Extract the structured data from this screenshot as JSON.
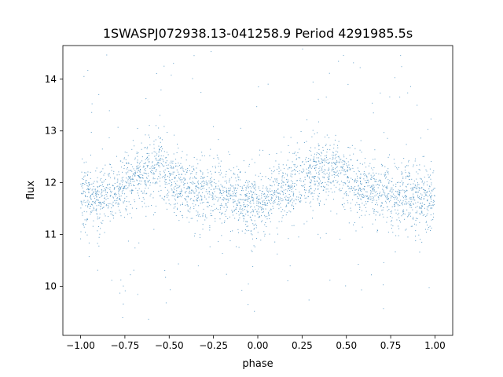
{
  "chart_data": {
    "type": "scatter",
    "title": "1SWASPJ072938.13-041258.9 Period 4291985.5s",
    "xlabel": "phase",
    "ylabel": "flux",
    "xlim": [
      -1.1,
      1.1
    ],
    "ylim": [
      9.05,
      14.65
    ],
    "xticks": [
      -1.0,
      -0.75,
      -0.5,
      -0.25,
      0.0,
      0.25,
      0.5,
      0.75,
      1.0
    ],
    "xtick_labels": [
      "−1.00",
      "−0.75",
      "−0.50",
      "−0.25",
      "0.00",
      "0.25",
      "0.50",
      "0.75",
      "1.00"
    ],
    "yticks": [
      10,
      11,
      12,
      13,
      14
    ],
    "ytick_labels": [
      "10",
      "11",
      "12",
      "13",
      "14"
    ],
    "grid": false,
    "legend": "none",
    "point_color": "#1f77b4",
    "series": [
      {
        "trend": {
          "phase": [
            -1.0,
            -0.9,
            -0.8,
            -0.7,
            -0.6,
            -0.55,
            -0.5,
            -0.45,
            -0.4,
            -0.3,
            -0.2,
            -0.1,
            0.0,
            0.1,
            0.2,
            0.3,
            0.4,
            0.45,
            0.5,
            0.55,
            0.6,
            0.7,
            0.8,
            0.9,
            1.0
          ],
          "flux": [
            11.75,
            11.65,
            11.85,
            12.15,
            12.25,
            12.35,
            12.05,
            11.95,
            11.85,
            11.8,
            11.75,
            11.65,
            11.6,
            11.75,
            11.95,
            12.15,
            12.3,
            12.35,
            12.05,
            11.95,
            11.9,
            11.8,
            11.75,
            11.7,
            11.7
          ]
        },
        "scatter_std": 0.35,
        "flux_range": [
          9.3,
          14.6
        ]
      }
    ]
  }
}
